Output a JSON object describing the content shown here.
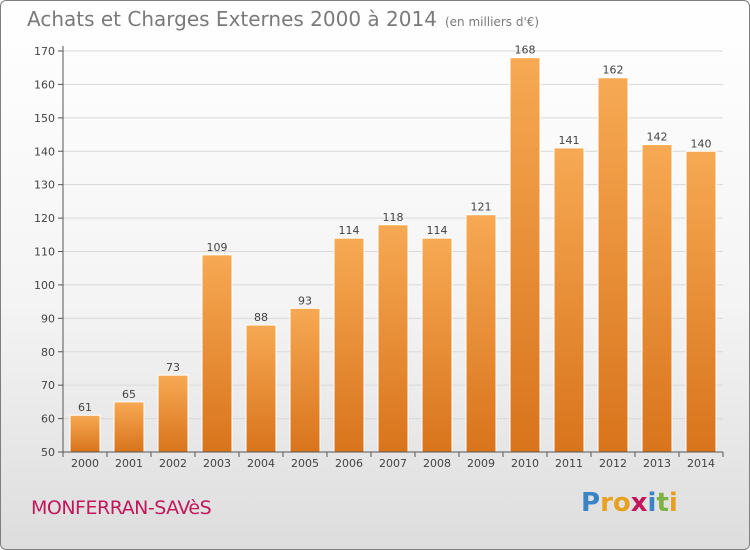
{
  "title": "Achats et Charges Externes 2000 à 2014",
  "subtitle": "(en milliers d'€)",
  "town": "MONFERRAN-SAVèS",
  "brand": {
    "name": "Proxiti",
    "letters": [
      "P",
      "r",
      "o",
      "x",
      "i",
      "t",
      "i"
    ],
    "letter_colors": [
      "#3a84c6",
      "#e8a020",
      "#e8a020",
      "#c2185b",
      "#3a84c6",
      "#7cb342",
      "#e8a020"
    ]
  },
  "colors": {
    "bar_top": "#f7a953",
    "bar_bottom": "#d8741c",
    "bar_edge": "#ffffff",
    "grid": "#d8d8d8",
    "axis": "#555555",
    "text": "#444444"
  },
  "chart_data": {
    "type": "bar",
    "categories": [
      "2000",
      "2001",
      "2002",
      "2003",
      "2004",
      "2005",
      "2006",
      "2007",
      "2008",
      "2009",
      "2010",
      "2011",
      "2012",
      "2013",
      "2014"
    ],
    "values": [
      61,
      65,
      73,
      109,
      88,
      93,
      114,
      118,
      114,
      121,
      168,
      141,
      162,
      142,
      140
    ],
    "ylim": [
      50,
      170
    ],
    "yticks": [
      50,
      60,
      70,
      80,
      90,
      100,
      110,
      120,
      130,
      140,
      150,
      160,
      170
    ],
    "grid": true,
    "data_labels": true
  }
}
